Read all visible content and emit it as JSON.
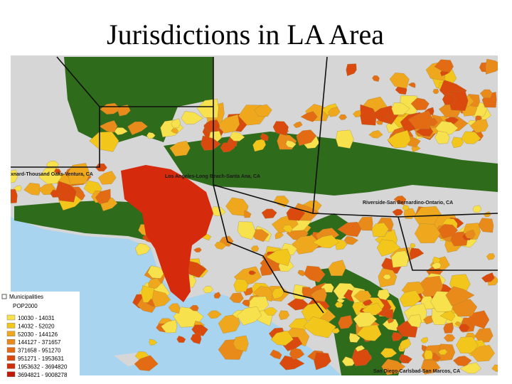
{
  "title": "Jurisdictions in LA Area",
  "map_labels": [
    "xnard-Thousand Oaks-Ventura, CA",
    "Los Angeles-Long Beach-Santa Ana, CA",
    "Riverside-San Bernardino-Ontario, CA",
    "San Diego-Carlsbad-San Marcos, CA"
  ],
  "legend": {
    "layer": "Municipalities",
    "field": "POP2000",
    "items": [
      {
        "label": "10030 - 14031",
        "color": "#f7e24e"
      },
      {
        "label": "14032 - 52020",
        "color": "#f3c61c"
      },
      {
        "label": "52030 - 144126",
        "color": "#efa81e"
      },
      {
        "label": "144127 - 371657",
        "color": "#e98b1a"
      },
      {
        "label": "371658 - 951270",
        "color": "#e36b14"
      },
      {
        "label": "951271 - 1953631",
        "color": "#da4a0e"
      },
      {
        "label": "1953632 - 3694820",
        "color": "#d02d0a"
      },
      {
        "label": "3694821 - 9008278",
        "color": "#c21806"
      }
    ]
  }
}
